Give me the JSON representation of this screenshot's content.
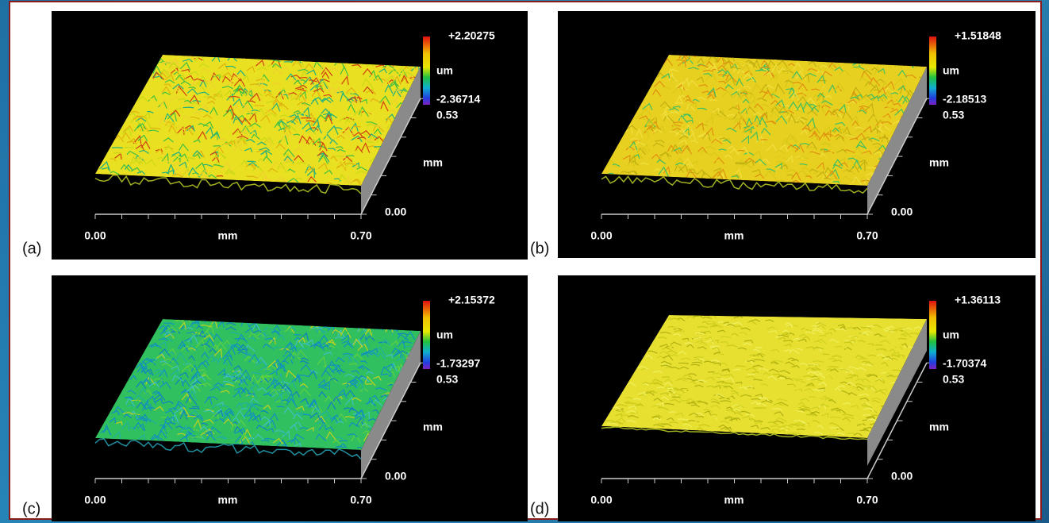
{
  "panels": [
    {
      "label": "(a)",
      "z_max": "+2.20275",
      "z_unit": "um",
      "z_min": "-2.36714",
      "y_end": "0.53",
      "y_unit": "mm",
      "y_start": "0.00",
      "x_start": "0.00",
      "x_unit": "mm",
      "x_end": "0.70"
    },
    {
      "label": "(b)",
      "z_max": "+1.51848",
      "z_unit": "um",
      "z_min": "-2.18513",
      "y_end": "0.53",
      "y_unit": "mm",
      "y_start": "0.00",
      "x_start": "0.00",
      "x_unit": "mm",
      "x_end": "0.70"
    },
    {
      "label": "(c)",
      "z_max": "+2.15372",
      "z_unit": "um",
      "z_min": "-1.73297",
      "y_end": "0.53",
      "y_unit": "mm",
      "y_start": "0.00",
      "x_start": "0.00",
      "x_unit": "mm",
      "x_end": "0.70"
    },
    {
      "label": "(d)",
      "z_max": "+1.36113",
      "z_unit": "um",
      "z_min": "-1.70374",
      "y_end": "0.53",
      "y_unit": "mm",
      "y_start": "0.00",
      "x_start": "0.00",
      "x_unit": "mm",
      "x_end": "0.70"
    }
  ]
}
